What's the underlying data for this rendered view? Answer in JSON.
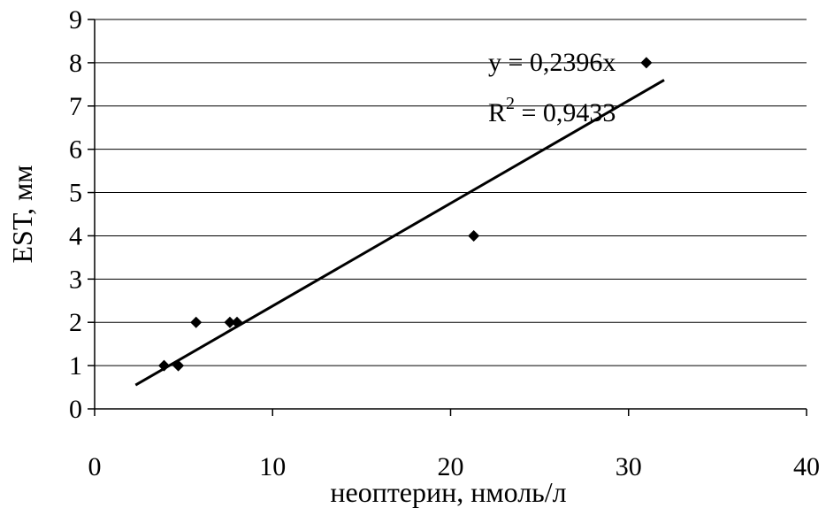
{
  "chart_data": {
    "type": "scatter",
    "title": "",
    "xlabel": "неоптерин, нмоль/л",
    "ylabel": "EST, мм",
    "xlim": [
      0,
      40
    ],
    "ylim": [
      0,
      9
    ],
    "x_ticks": [
      "0",
      "10",
      "20",
      "30",
      "40"
    ],
    "y_ticks": [
      "0",
      "1",
      "2",
      "3",
      "4",
      "5",
      "6",
      "7",
      "8",
      "9"
    ],
    "grid": "horizontal",
    "legend": "none",
    "series": [
      {
        "values": [
          {
            "x": 3.9,
            "y": 1
          },
          {
            "x": 4.7,
            "y": 1
          },
          {
            "x": 5.7,
            "y": 2
          },
          {
            "x": 7.6,
            "y": 2
          },
          {
            "x": 8.0,
            "y": 2
          },
          {
            "x": 21.3,
            "y": 4
          },
          {
            "x": 31.0,
            "y": 8
          }
        ],
        "marker": "diamond",
        "color": "#000000"
      }
    ],
    "trendline": {
      "x": [
        2.3,
        32.0
      ],
      "y": [
        0.55,
        7.6
      ],
      "equation": "y = 0,2396x",
      "r2_label": "R",
      "r2_sup": "2",
      "r2_value": " = 0,9433"
    }
  }
}
